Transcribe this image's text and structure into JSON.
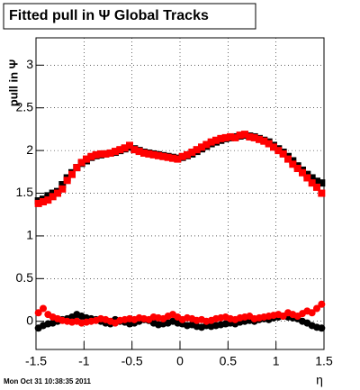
{
  "chart_data": {
    "type": "scatter",
    "title": "Fitted pull in  Ψ   Global Tracks",
    "y_label": "pull in Ψ",
    "x_label": "η",
    "timestamp": "Mon Oct 31 10:38:35 2011",
    "x": [
      -1.475,
      -1.425,
      -1.375,
      -1.325,
      -1.275,
      -1.225,
      -1.175,
      -1.125,
      -1.075,
      -1.025,
      -0.975,
      -0.925,
      -0.875,
      -0.825,
      -0.775,
      -0.725,
      -0.675,
      -0.625,
      -0.575,
      -0.525,
      -0.475,
      -0.425,
      -0.375,
      -0.325,
      -0.275,
      -0.225,
      -0.175,
      -0.125,
      -0.075,
      -0.025,
      0.025,
      0.075,
      0.125,
      0.175,
      0.225,
      0.275,
      0.325,
      0.375,
      0.425,
      0.475,
      0.525,
      0.575,
      0.625,
      0.675,
      0.725,
      0.775,
      0.825,
      0.875,
      0.925,
      0.975,
      1.025,
      1.075,
      1.125,
      1.175,
      1.225,
      1.275,
      1.325,
      1.375,
      1.425,
      1.475
    ],
    "series": [
      {
        "color": "#000000",
        "marker": "square",
        "values": [
          1.41,
          1.43,
          1.47,
          1.5,
          1.52,
          1.6,
          1.68,
          1.74,
          1.8,
          1.85,
          1.88,
          1.92,
          1.94,
          1.95,
          1.96,
          1.97,
          1.98,
          2.0,
          2.02,
          2.04,
          2.02,
          2.0,
          1.98,
          1.97,
          1.96,
          1.95,
          1.94,
          1.93,
          1.92,
          1.91,
          1.92,
          1.94,
          1.96,
          1.99,
          2.02,
          2.05,
          2.08,
          2.1,
          2.12,
          2.14,
          2.15,
          2.16,
          2.17,
          2.18,
          2.17,
          2.16,
          2.14,
          2.12,
          2.1,
          2.06,
          2.02,
          1.98,
          1.93,
          1.88,
          1.82,
          1.77,
          1.72,
          1.68,
          1.64,
          1.62
        ]
      },
      {
        "color": "#ff0000",
        "marker": "square",
        "values": [
          1.38,
          1.4,
          1.42,
          1.46,
          1.5,
          1.55,
          1.65,
          1.72,
          1.8,
          1.86,
          1.9,
          1.93,
          1.95,
          1.96,
          1.96,
          1.97,
          1.99,
          2.01,
          2.03,
          2.06,
          2.01,
          1.99,
          1.97,
          1.96,
          1.95,
          1.94,
          1.93,
          1.92,
          1.91,
          1.9,
          1.93,
          1.95,
          1.98,
          2.01,
          2.04,
          2.07,
          2.1,
          2.12,
          2.14,
          2.15,
          2.16,
          2.15,
          2.18,
          2.19,
          2.16,
          2.15,
          2.13,
          2.11,
          2.08,
          2.04,
          2.0,
          1.96,
          1.9,
          1.84,
          1.79,
          1.74,
          1.68,
          1.62,
          1.57,
          1.5
        ]
      },
      {
        "color": "#000000",
        "marker": "circle",
        "values": [
          -0.08,
          -0.05,
          -0.03,
          -0.02,
          0.0,
          0.02,
          0.03,
          0.05,
          0.08,
          0.06,
          0.04,
          0.03,
          0.02,
          0.0,
          -0.02,
          -0.03,
          0.02,
          0.0,
          -0.01,
          -0.03,
          -0.02,
          0.0,
          0.02,
          0.01,
          -0.02,
          -0.04,
          -0.03,
          -0.02,
          0.0,
          -0.02,
          -0.03,
          -0.05,
          -0.04,
          -0.06,
          -0.07,
          -0.05,
          -0.06,
          -0.05,
          -0.04,
          -0.03,
          -0.02,
          -0.03,
          -0.01,
          0.0,
          0.01,
          0.0,
          0.02,
          0.03,
          0.02,
          0.04,
          0.05,
          0.06,
          0.05,
          0.04,
          0.03,
          0.0,
          -0.02,
          -0.05,
          -0.07,
          -0.08
        ]
      },
      {
        "color": "#ff0000",
        "marker": "circle",
        "values": [
          0.1,
          0.15,
          0.08,
          0.05,
          0.03,
          0.01,
          0.0,
          -0.01,
          0.0,
          -0.02,
          -0.01,
          0.0,
          0.01,
          0.03,
          0.02,
          0.0,
          -0.02,
          0.01,
          0.02,
          0.03,
          0.02,
          0.04,
          0.03,
          0.02,
          0.05,
          0.04,
          0.03,
          0.06,
          0.08,
          0.05,
          0.02,
          0.04,
          0.03,
          0.01,
          0.02,
          0.0,
          0.01,
          0.03,
          0.04,
          0.05,
          0.03,
          0.02,
          0.04,
          0.05,
          0.06,
          0.03,
          0.04,
          0.05,
          0.06,
          0.07,
          0.08,
          0.06,
          0.1,
          0.08,
          0.06,
          0.09,
          0.12,
          0.1,
          0.15,
          0.2
        ]
      }
    ],
    "xlim": [
      -1.5,
      1.5
    ],
    "xticks": [
      -1.5,
      -1,
      -0.5,
      0,
      0.5,
      1,
      1.5
    ],
    "ylim": [
      -0.33,
      3.32
    ],
    "yticks": [
      0,
      0.5,
      1,
      1.5,
      2,
      2.5,
      3
    ],
    "grid": true
  }
}
